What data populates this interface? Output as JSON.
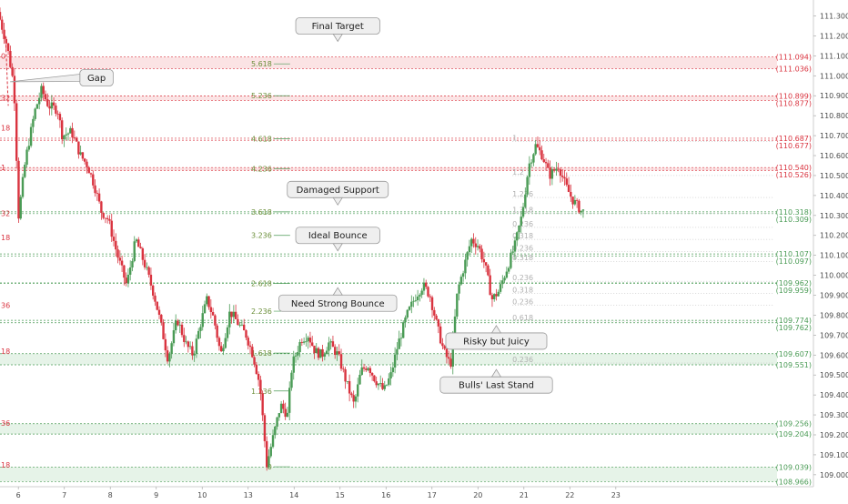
{
  "chart_data": {
    "type": "candlestick",
    "title": "",
    "y_axis": {
      "min": 108.94,
      "max": 111.38,
      "ticks": [
        109.0,
        109.1,
        109.2,
        109.3,
        109.4,
        109.5,
        109.6,
        109.7,
        109.8,
        109.9,
        110.0,
        110.1,
        110.2,
        110.3,
        110.4,
        110.5,
        110.6,
        110.7,
        110.8,
        110.9,
        111.0,
        111.1,
        111.2,
        111.3
      ]
    },
    "x_axis": {
      "min": 5.6,
      "max": 23.3,
      "labels": [
        {
          "x": 6,
          "label": "6"
        },
        {
          "x": 7,
          "label": "7"
        },
        {
          "x": 8,
          "label": "8"
        },
        {
          "x": 9,
          "label": "9"
        },
        {
          "x": 10,
          "label": "10"
        },
        {
          "x": 11,
          "label": "13"
        },
        {
          "x": 12,
          "label": "14"
        },
        {
          "x": 13,
          "label": "15"
        },
        {
          "x": 14,
          "label": "16"
        },
        {
          "x": 15,
          "label": "17"
        },
        {
          "x": 16,
          "label": "20"
        },
        {
          "x": 17,
          "label": "21"
        },
        {
          "x": 18,
          "label": "22"
        },
        {
          "x": 19,
          "label": "23"
        }
      ]
    },
    "colors": {
      "up": "#4a9b55",
      "down": "#d9333f",
      "red_level": "#d9333f",
      "green_level": "#4a9b55",
      "zone_red": "#fbe3e4",
      "zone_green": "#e6f3e8",
      "fib_faint": "#b0b0b0"
    },
    "price_levels": [
      {
        "price": 111.094,
        "label": "(111.094)",
        "color": "red"
      },
      {
        "price": 111.036,
        "label": "(111.036)",
        "color": "red"
      },
      {
        "price": 110.899,
        "label": "(110.899)",
        "color": "red"
      },
      {
        "price": 110.877,
        "label": "(110.877)",
        "color": "red"
      },
      {
        "price": 110.687,
        "label": "(110.687)",
        "color": "red"
      },
      {
        "price": 110.677,
        "label": "(110.677)",
        "color": "red"
      },
      {
        "price": 110.54,
        "label": "(110.540)",
        "color": "red"
      },
      {
        "price": 110.526,
        "label": "(110.526)",
        "color": "red"
      },
      {
        "price": 110.318,
        "label": "(110.318)",
        "color": "green"
      },
      {
        "price": 110.309,
        "label": "(110.309)",
        "color": "green"
      },
      {
        "price": 110.107,
        "label": "(110.107)",
        "color": "green"
      },
      {
        "price": 110.097,
        "label": "(110.097)",
        "color": "green"
      },
      {
        "price": 109.962,
        "label": "(109.962)",
        "color": "green"
      },
      {
        "price": 109.959,
        "label": "(109.959)",
        "color": "green"
      },
      {
        "price": 109.774,
        "label": "(109.774)",
        "color": "green"
      },
      {
        "price": 109.762,
        "label": "(109.762)",
        "color": "green"
      },
      {
        "price": 109.607,
        "label": "(109.607)",
        "color": "green"
      },
      {
        "price": 109.551,
        "label": "(109.551)",
        "color": "green"
      },
      {
        "price": 109.256,
        "label": "(109.256)",
        "color": "green"
      },
      {
        "price": 109.204,
        "label": "(109.204)",
        "color": "green"
      },
      {
        "price": 109.039,
        "label": "(109.039)",
        "color": "green"
      },
      {
        "price": 108.966,
        "label": "(108.966)",
        "color": "green"
      }
    ],
    "zones": [
      {
        "from": 111.036,
        "to": 111.094,
        "color": "red"
      },
      {
        "from": 110.877,
        "to": 110.899,
        "color": "red"
      },
      {
        "from": 110.526,
        "to": 110.54,
        "color": "red"
      },
      {
        "from": 109.551,
        "to": 109.607,
        "color": "green"
      },
      {
        "from": 109.204,
        "to": 109.256,
        "color": "green"
      },
      {
        "from": 108.966,
        "to": 109.039,
        "color": "green"
      }
    ],
    "extension_labels": [
      {
        "price": 111.06,
        "label": "5.618"
      },
      {
        "price": 110.9,
        "label": "5.236"
      },
      {
        "price": 110.685,
        "label": "4.618"
      },
      {
        "price": 110.535,
        "label": "4.236"
      },
      {
        "price": 110.318,
        "label": "3.618"
      },
      {
        "price": 110.2,
        "label": "3.236"
      },
      {
        "price": 109.96,
        "label": "2.618"
      },
      {
        "price": 109.82,
        "label": "2.236"
      },
      {
        "price": 109.61,
        "label": "1.618"
      },
      {
        "price": 109.42,
        "label": "1.236"
      },
      {
        "price": 109.04,
        "label": "0"
      }
    ],
    "left_edge_labels": [
      {
        "price": 111.1,
        "label": "0"
      },
      {
        "price": 110.89,
        "label": "32"
      },
      {
        "price": 110.74,
        "label": "18"
      },
      {
        "price": 110.54,
        "label": "1"
      },
      {
        "price": 110.31,
        "label": "32"
      },
      {
        "price": 110.19,
        "label": "18"
      },
      {
        "price": 109.85,
        "label": "36"
      },
      {
        "price": 109.62,
        "label": "18"
      },
      {
        "price": 109.26,
        "label": "36"
      },
      {
        "price": 109.05,
        "label": "18"
      }
    ],
    "faint_fib_labels": [
      {
        "price": 110.67,
        "label": "1"
      },
      {
        "price": 110.5,
        "label": "1.2"
      },
      {
        "price": 110.39,
        "label": "1.236"
      },
      {
        "price": 110.31,
        "label": "1.318"
      },
      {
        "price": 110.24,
        "label": "0.236"
      },
      {
        "price": 110.18,
        "label": "0.318"
      },
      {
        "price": 110.12,
        "label": "0.236"
      },
      {
        "price": 110.07,
        "label": "0.318"
      },
      {
        "price": 109.97,
        "label": "0.236"
      },
      {
        "price": 109.91,
        "label": "0.318"
      },
      {
        "price": 109.85,
        "label": "0.236"
      },
      {
        "price": 109.77,
        "label": "0.618"
      },
      {
        "price": 109.56,
        "label": "0.236"
      }
    ],
    "annotations": [
      {
        "label": "Final Target",
        "x": 12.95,
        "price": 111.25,
        "pointer": "down"
      },
      {
        "label": "Gap",
        "x": 7.7,
        "price": 110.99,
        "pointer": "left"
      },
      {
        "label": "Damaged Support",
        "x": 12.95,
        "price": 110.43,
        "pointer": "down"
      },
      {
        "label": "Ideal Bounce",
        "x": 12.95,
        "price": 110.2,
        "pointer": "down"
      },
      {
        "label": "Need Strong Bounce",
        "x": 12.95,
        "price": 109.86,
        "pointer": "up"
      },
      {
        "label": "Risky but Juicy",
        "x": 16.4,
        "price": 109.67,
        "pointer": "up"
      },
      {
        "label": "Bulls' Last Stand",
        "x": 16.4,
        "price": 109.45,
        "pointer": "up"
      }
    ],
    "price_path": [
      [
        5.6,
        111.32
      ],
      [
        5.8,
        111.15
      ],
      [
        5.95,
        110.95
      ],
      [
        6.05,
        110.3
      ],
      [
        6.2,
        110.58
      ],
      [
        6.4,
        110.82
      ],
      [
        6.55,
        110.93
      ],
      [
        6.7,
        110.85
      ],
      [
        6.9,
        110.83
      ],
      [
        7.0,
        110.7
      ],
      [
        7.2,
        110.72
      ],
      [
        7.4,
        110.6
      ],
      [
        7.55,
        110.55
      ],
      [
        7.7,
        110.45
      ],
      [
        7.85,
        110.32
      ],
      [
        8.0,
        110.28
      ],
      [
        8.2,
        110.1
      ],
      [
        8.4,
        109.95
      ],
      [
        8.6,
        110.18
      ],
      [
        8.8,
        110.05
      ],
      [
        9.0,
        109.9
      ],
      [
        9.15,
        109.75
      ],
      [
        9.3,
        109.58
      ],
      [
        9.5,
        109.78
      ],
      [
        9.7,
        109.65
      ],
      [
        9.85,
        109.6
      ],
      [
        10.0,
        109.75
      ],
      [
        10.15,
        109.88
      ],
      [
        10.3,
        109.78
      ],
      [
        10.45,
        109.6
      ],
      [
        10.65,
        109.82
      ],
      [
        10.85,
        109.75
      ],
      [
        11.0,
        109.7
      ],
      [
        11.15,
        109.6
      ],
      [
        11.3,
        109.45
      ],
      [
        11.45,
        109.05
      ],
      [
        11.6,
        109.2
      ],
      [
        11.75,
        109.35
      ],
      [
        11.9,
        109.3
      ],
      [
        12.0,
        109.55
      ],
      [
        12.2,
        109.68
      ],
      [
        12.35,
        109.7
      ],
      [
        12.5,
        109.62
      ],
      [
        12.65,
        109.6
      ],
      [
        12.8,
        109.66
      ],
      [
        13.0,
        109.6
      ],
      [
        13.2,
        109.45
      ],
      [
        13.35,
        109.35
      ],
      [
        13.5,
        109.52
      ],
      [
        13.65,
        109.55
      ],
      [
        13.8,
        109.48
      ],
      [
        14.0,
        109.42
      ],
      [
        14.15,
        109.5
      ],
      [
        14.3,
        109.65
      ],
      [
        14.5,
        109.8
      ],
      [
        14.7,
        109.9
      ],
      [
        14.85,
        109.95
      ],
      [
        15.0,
        109.9
      ],
      [
        15.15,
        109.75
      ],
      [
        15.3,
        109.62
      ],
      [
        15.45,
        109.55
      ],
      [
        15.6,
        109.92
      ],
      [
        15.75,
        110.05
      ],
      [
        15.9,
        110.18
      ],
      [
        16.05,
        110.15
      ],
      [
        16.2,
        110.05
      ],
      [
        16.35,
        109.88
      ],
      [
        16.5,
        109.92
      ],
      [
        16.7,
        110.05
      ],
      [
        16.85,
        110.15
      ],
      [
        17.0,
        110.3
      ],
      [
        17.15,
        110.55
      ],
      [
        17.3,
        110.65
      ],
      [
        17.45,
        110.6
      ],
      [
        17.6,
        110.5
      ],
      [
        17.8,
        110.55
      ],
      [
        17.95,
        110.45
      ],
      [
        18.1,
        110.38
      ],
      [
        18.3,
        110.32
      ]
    ]
  }
}
